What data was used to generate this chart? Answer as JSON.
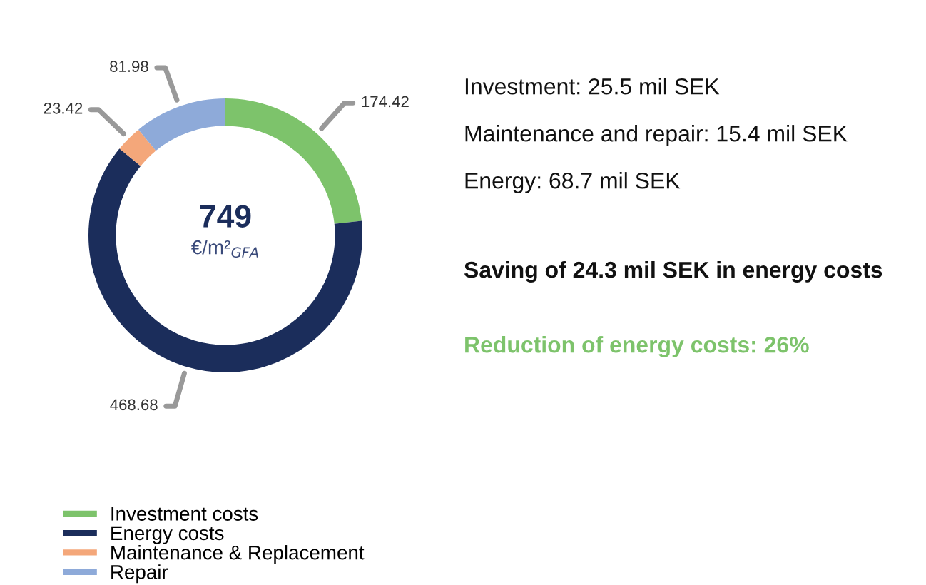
{
  "chart_data": {
    "type": "donut",
    "categories": [
      "Investment costs",
      "Energy costs",
      "Maintenance & Replacement",
      "Repair"
    ],
    "values": [
      174.42,
      468.68,
      23.42,
      81.98
    ],
    "colors": [
      "#7dc36b",
      "#1b2d5b",
      "#f4a77a",
      "#8eaad9"
    ],
    "data_labels": true,
    "legend": "bottom left",
    "annotations": [
      "749",
      "€/m²$_{GFA}$",
      "Investment: 25.5 mil SEK",
      "Maintenance and repair: 15.4 mil SEK",
      "Energy: 68.7 mil SEK",
      "Saving of 24.3 mil SEK in energy costs",
      "Reduction of energy costs: 26%"
    ]
  }
}
